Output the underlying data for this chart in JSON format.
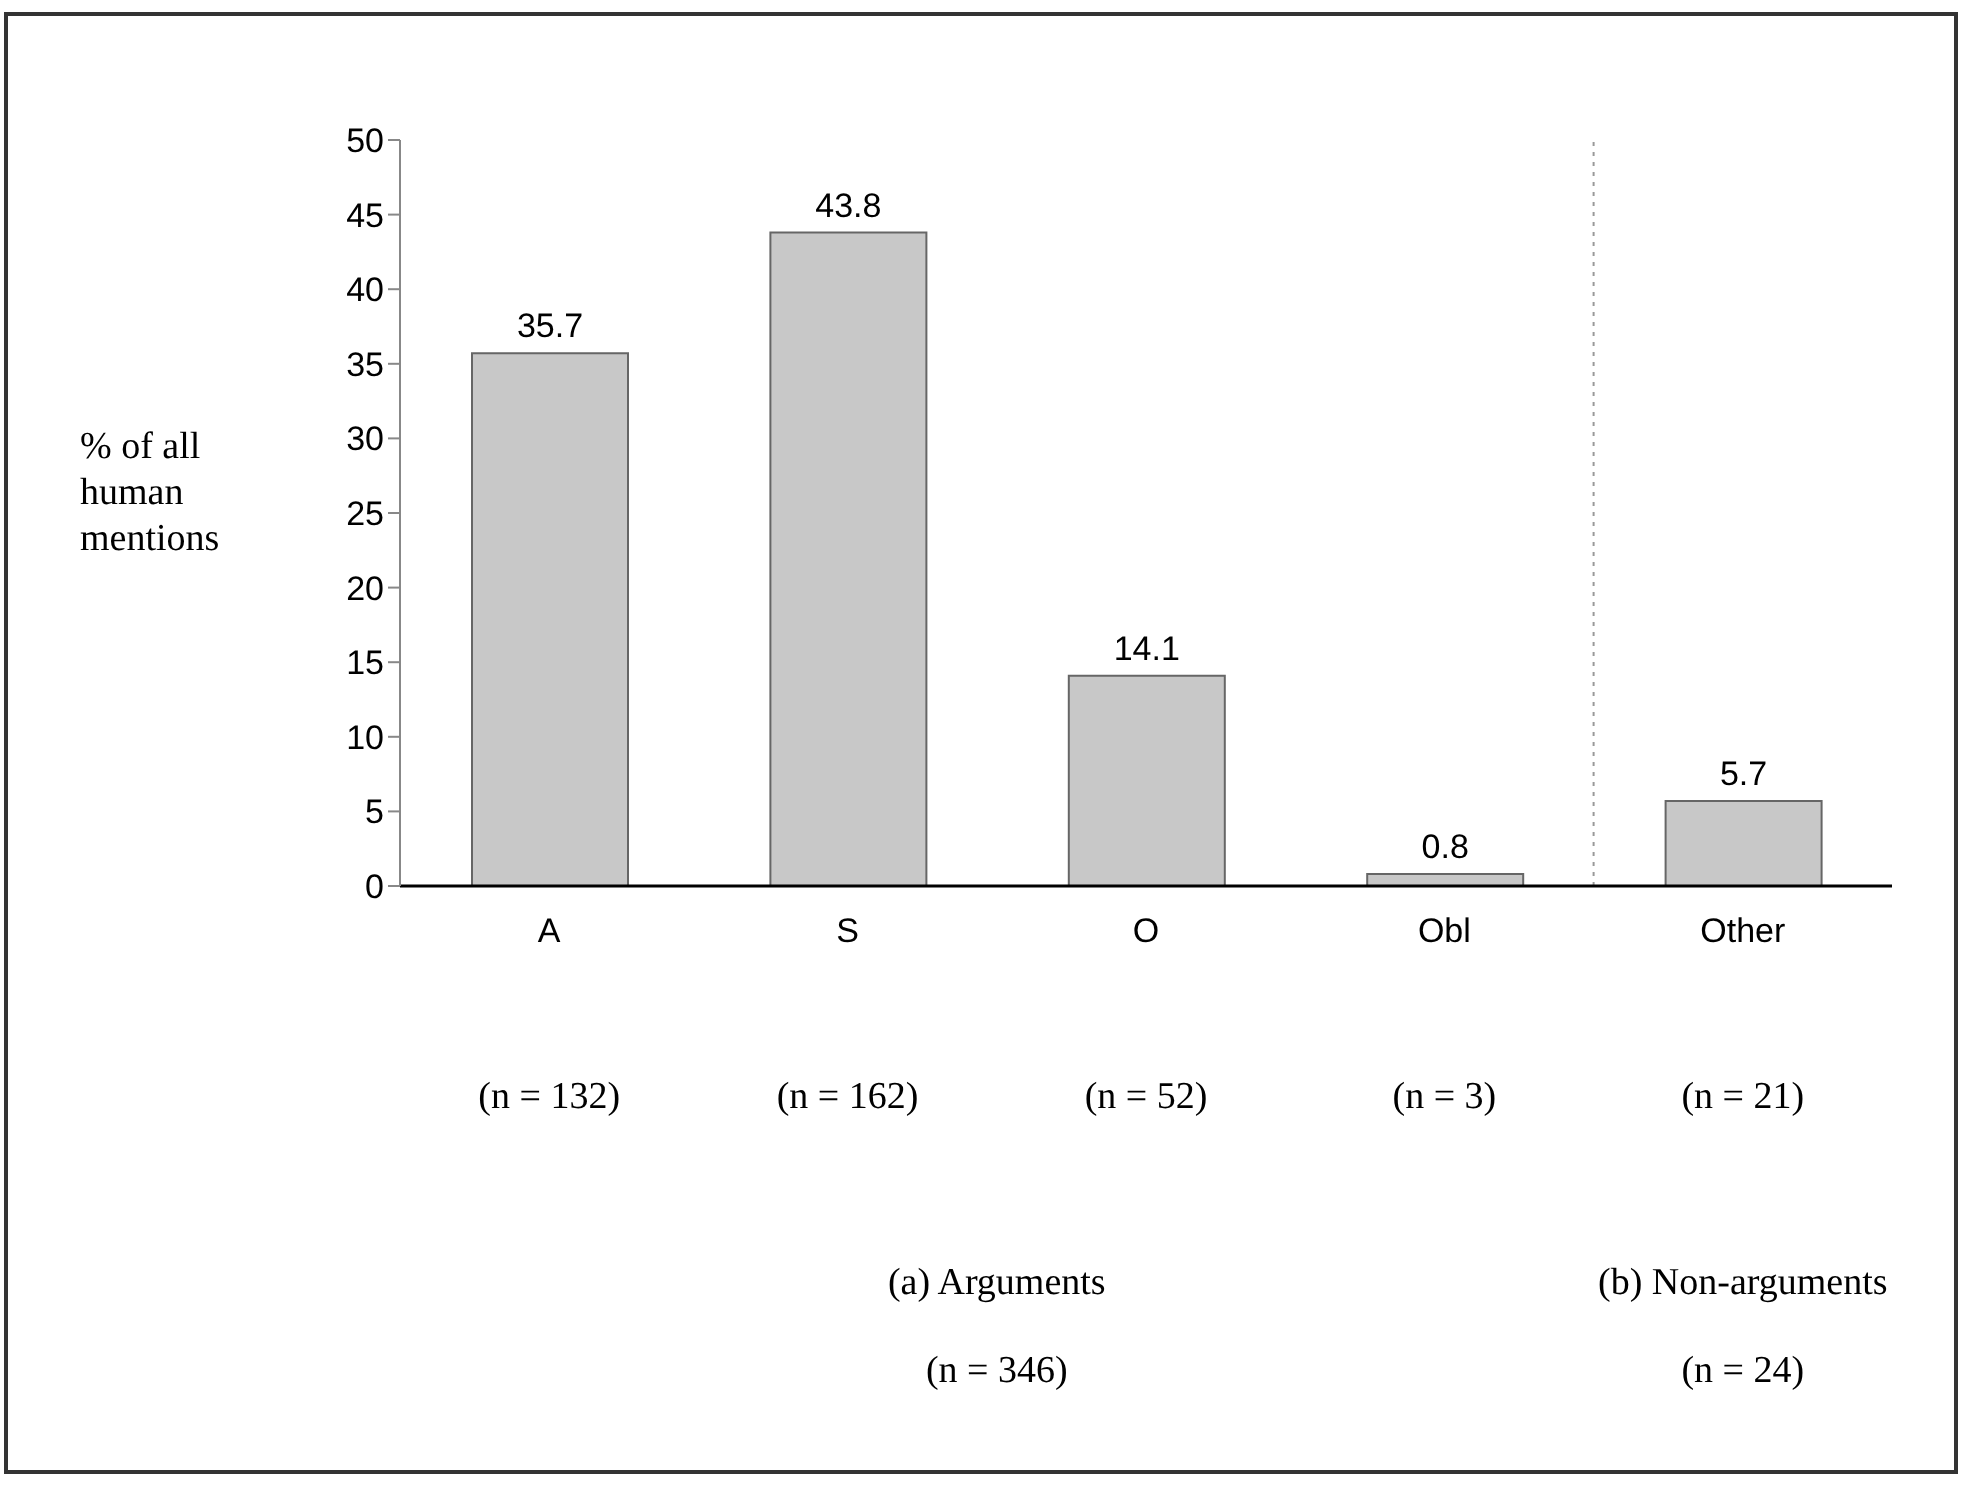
{
  "chart_data": {
    "type": "bar",
    "ylabel": "% of all human mentions",
    "categories": [
      "A",
      "S",
      "O",
      "Obl",
      "Other"
    ],
    "values": [
      35.7,
      43.8,
      14.1,
      0.8,
      5.7
    ],
    "color": "#c8c8c8",
    "ylim": [
      0,
      50
    ],
    "yticks": [
      0,
      5,
      10,
      15,
      20,
      25,
      30,
      35,
      40,
      45,
      50
    ],
    "grid": false,
    "legend": false,
    "data_labels": true,
    "annotations": [
      "(n = 132)",
      "(n = 162)",
      "(n = 52)",
      "(n = 3)",
      "(n = 21)",
      "(a) Arguments\n(n = 346)",
      "(b) Non-arguments\n(n = 24)"
    ]
  }
}
